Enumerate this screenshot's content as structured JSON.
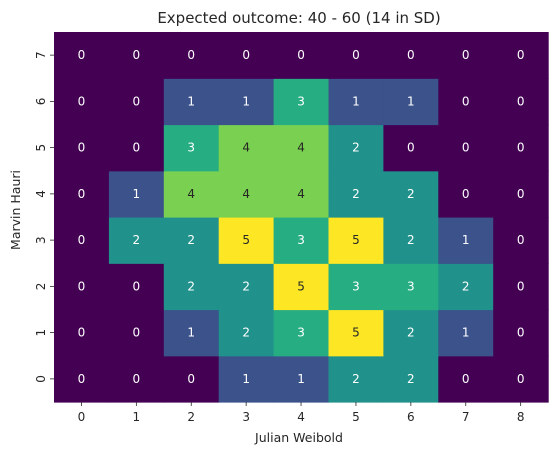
{
  "chart_data": {
    "type": "heatmap",
    "title": "Expected outcome: 40 - 60 (14 in SD)",
    "xlabel": "Julian Weibold",
    "ylabel": "Marvin Hauri",
    "x_categories": [
      "0",
      "1",
      "2",
      "3",
      "4",
      "5",
      "6",
      "7",
      "8"
    ],
    "y_categories": [
      "0",
      "1",
      "2",
      "3",
      "4",
      "5",
      "6",
      "7"
    ],
    "y_order": "bottom-to-top",
    "values": [
      [
        0,
        0,
        0,
        1,
        1,
        2,
        2,
        0,
        0
      ],
      [
        0,
        0,
        1,
        2,
        3,
        5,
        2,
        1,
        0
      ],
      [
        0,
        0,
        2,
        2,
        5,
        3,
        3,
        2,
        0
      ],
      [
        0,
        2,
        2,
        5,
        3,
        5,
        2,
        1,
        0
      ],
      [
        0,
        1,
        4,
        4,
        4,
        2,
        2,
        0,
        0
      ],
      [
        0,
        0,
        3,
        4,
        4,
        2,
        0,
        0,
        0
      ],
      [
        0,
        0,
        1,
        1,
        3,
        1,
        1,
        0,
        0
      ],
      [
        0,
        0,
        0,
        0,
        0,
        0,
        0,
        0,
        0
      ]
    ],
    "value_range": [
      0,
      5
    ],
    "colormap": "viridis",
    "annotations": true,
    "colors": {
      "0": "#440154",
      "1": "#3b528b",
      "2": "#21918c",
      "3": "#26ad81",
      "4": "#7ad151",
      "5": "#fde725"
    },
    "annotation_colors": {
      "on_dark": "#ffffff",
      "on_light": "#262626"
    },
    "grid": false,
    "legend": "none"
  }
}
